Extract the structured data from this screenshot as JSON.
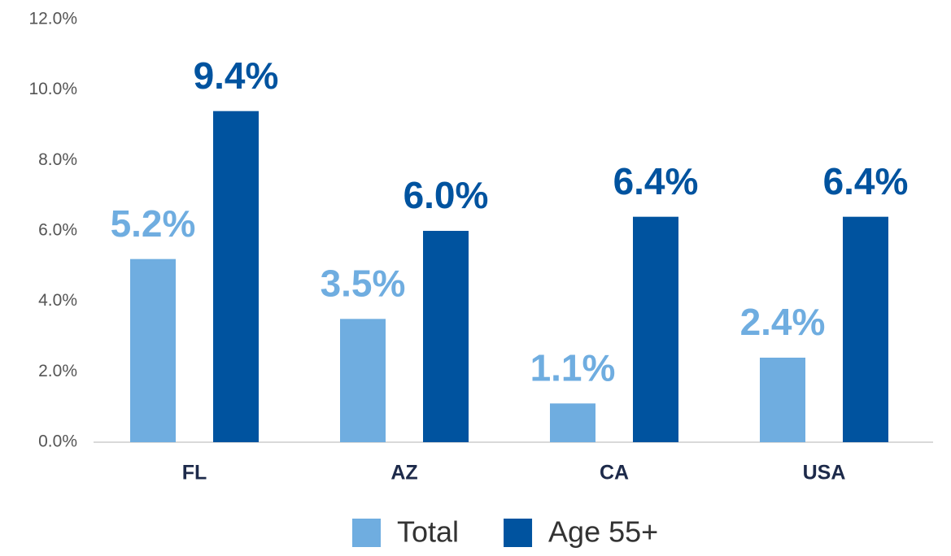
{
  "chart_data": {
    "type": "bar",
    "categories": [
      "FL",
      "AZ",
      "CA",
      "USA"
    ],
    "series": [
      {
        "name": "Total",
        "color": "#6fade0",
        "values": [
          5.2,
          3.5,
          1.1,
          2.4
        ],
        "value_labels": [
          "5.2%",
          "3.5%",
          "1.1%",
          "2.4%"
        ]
      },
      {
        "name": "Age 55+",
        "color": "#00539f",
        "values": [
          9.4,
          6.0,
          6.4,
          6.4
        ],
        "value_labels": [
          "9.4%",
          "6.0%",
          "6.4%",
          "6.4%"
        ]
      }
    ],
    "ylim": [
      0,
      12
    ],
    "yticks": [
      {
        "value": 0,
        "label": "0.0%"
      },
      {
        "value": 2,
        "label": "2.0%"
      },
      {
        "value": 4,
        "label": "4.0%"
      },
      {
        "value": 6,
        "label": "6.0%"
      },
      {
        "value": 8,
        "label": "8.0%"
      },
      {
        "value": 10,
        "label": "10.0%"
      },
      {
        "value": 12,
        "label": "12.0%"
      }
    ],
    "grid": false,
    "legend": "bottom"
  }
}
